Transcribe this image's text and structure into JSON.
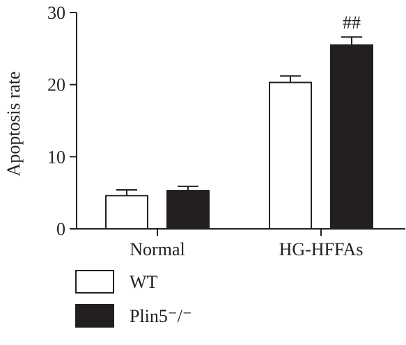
{
  "chart_data": {
    "type": "bar",
    "title": "",
    "xlabel": "",
    "ylabel": "Apoptosis rate",
    "ylim": [
      0,
      30
    ],
    "yticks": [
      "0",
      "10",
      "20",
      "30"
    ],
    "categories": [
      "Normal",
      "HG-HFFAs"
    ],
    "series": [
      {
        "name": "WT",
        "values": [
          4.6,
          20.3
        ],
        "errors": [
          0.8,
          0.9
        ],
        "color": "#ffffff"
      },
      {
        "name": "Plin5⁻/⁻",
        "values": [
          5.3,
          25.5
        ],
        "errors": [
          0.6,
          1.1
        ],
        "color": "#231f20"
      }
    ],
    "annotations": [
      {
        "text": "##",
        "category": "HG-HFFAs",
        "series": 1
      }
    ],
    "grid": false,
    "legend": "bottom-left"
  }
}
